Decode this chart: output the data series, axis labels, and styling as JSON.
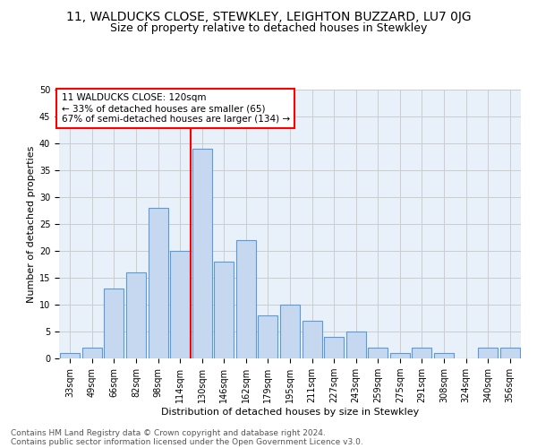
{
  "title": "11, WALDUCKS CLOSE, STEWKLEY, LEIGHTON BUZZARD, LU7 0JG",
  "subtitle": "Size of property relative to detached houses in Stewkley",
  "xlabel": "Distribution of detached houses by size in Stewkley",
  "ylabel": "Number of detached properties",
  "footnote1": "Contains HM Land Registry data © Crown copyright and database right 2024.",
  "footnote2": "Contains public sector information licensed under the Open Government Licence v3.0.",
  "categories": [
    "33sqm",
    "49sqm",
    "66sqm",
    "82sqm",
    "98sqm",
    "114sqm",
    "130sqm",
    "146sqm",
    "162sqm",
    "179sqm",
    "195sqm",
    "211sqm",
    "227sqm",
    "243sqm",
    "259sqm",
    "275sqm",
    "291sqm",
    "308sqm",
    "324sqm",
    "340sqm",
    "356sqm"
  ],
  "values": [
    1,
    2,
    13,
    16,
    28,
    20,
    39,
    18,
    22,
    8,
    10,
    7,
    4,
    5,
    2,
    1,
    2,
    1,
    0,
    2,
    2
  ],
  "bar_color": "#c5d8f0",
  "bar_edge_color": "#5b9bd5",
  "vline_x_index": 5.5,
  "vline_color": "red",
  "annotation_box_text": "11 WALDUCKS CLOSE: 120sqm\n← 33% of detached houses are smaller (65)\n67% of semi-detached houses are larger (134) →",
  "annotation_box_color": "red",
  "ylim": [
    0,
    50
  ],
  "yticks": [
    0,
    5,
    10,
    15,
    20,
    25,
    30,
    35,
    40,
    45,
    50
  ],
  "grid_color": "#cccccc",
  "bg_color": "#e8f0fa",
  "title_fontsize": 10,
  "subtitle_fontsize": 9,
  "axis_label_fontsize": 8,
  "tick_fontsize": 7,
  "annotation_fontsize": 7.5,
  "footnote_fontsize": 6.5
}
